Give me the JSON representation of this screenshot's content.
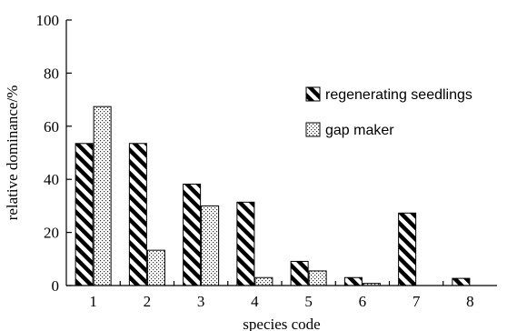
{
  "chart_data": {
    "type": "bar",
    "title": "",
    "xlabel": "species code",
    "ylabel": "relative dominance/%",
    "categories": [
      "1",
      "2",
      "3",
      "4",
      "5",
      "6",
      "7",
      "8"
    ],
    "ylim": [
      0,
      100
    ],
    "yticks": [
      0,
      20,
      40,
      60,
      80,
      100
    ],
    "grid": false,
    "legend_position": "right",
    "series": [
      {
        "name": "regenerating seedlings",
        "pattern": "diagonal-hatch",
        "values": [
          53.5,
          53.5,
          38.2,
          31.4,
          9.1,
          3.0,
          27.3,
          2.7
        ]
      },
      {
        "name": "gap maker",
        "pattern": "dotted",
        "values": [
          67.4,
          13.3,
          30.0,
          3.0,
          5.5,
          0.8,
          0,
          0
        ]
      }
    ]
  }
}
